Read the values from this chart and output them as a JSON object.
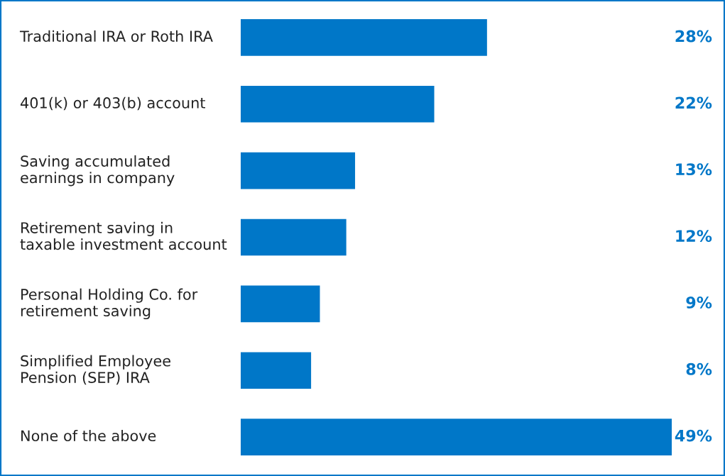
{
  "chart_data": {
    "type": "bar",
    "orientation": "horizontal",
    "categories": [
      "Traditional IRA or Roth IRA",
      "401(k) or 403(b) account",
      "Saving accumulated\nearnings in company",
      "Retirement saving in\ntaxable investment account",
      "Personal Holding Co. for\nretirement saving",
      "Simplified Employee\nPension (SEP) IRA",
      "None of the above"
    ],
    "values": [
      28,
      22,
      13,
      12,
      9,
      8,
      49
    ],
    "value_labels": [
      "28%",
      "22%",
      "13%",
      "12%",
      "9%",
      "8%",
      "49%"
    ],
    "color": "#0077c8"
  }
}
